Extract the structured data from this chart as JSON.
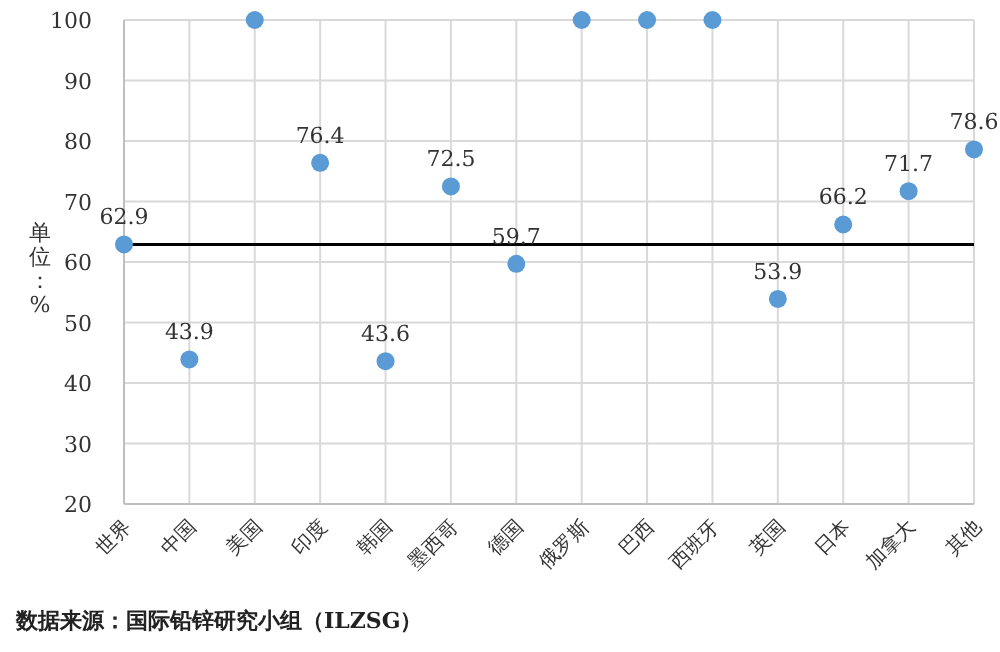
{
  "chart_data": {
    "type": "scatter",
    "ylabel": "单位：%",
    "categories": [
      "世界",
      "中国",
      "美国",
      "印度",
      "韩国",
      "墨西哥",
      "德国",
      "俄罗斯",
      "巴西",
      "西班牙",
      "英国",
      "日本",
      "加拿大",
      "其他"
    ],
    "series": [
      {
        "color": "#5b9bd5",
        "values": [
          62.9,
          43.9,
          100,
          76.4,
          43.6,
          72.5,
          59.7,
          100,
          100,
          100,
          53.9,
          66.2,
          71.7,
          78.6
        ],
        "value_labels": [
          "62.9",
          "43.9",
          null,
          "76.4",
          "43.6",
          "72.5",
          "59.7",
          null,
          null,
          null,
          "53.9",
          "66.2",
          "71.7",
          "78.6"
        ]
      }
    ],
    "ylim": [
      20,
      100
    ],
    "yticks": [
      20,
      30,
      40,
      50,
      60,
      70,
      80,
      90,
      100
    ],
    "grid": true,
    "marker": "circle",
    "ref_lines": [
      {
        "axis": "y",
        "value": 62.9,
        "color": "#000000"
      }
    ],
    "annotations": [
      "数据来源：国际铅锌研究小组（ILZSG）"
    ]
  }
}
